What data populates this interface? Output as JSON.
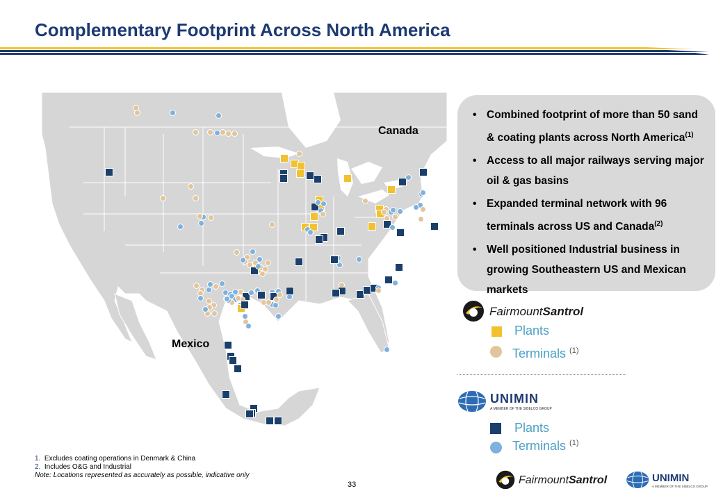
{
  "title": "Complementary Footprint Across North America",
  "map": {
    "label_canada": "Canada",
    "label_mexico": "Mexico"
  },
  "bullets": [
    {
      "text": "Combined footprint of more than 50 sand & coating plants across North America",
      "ref": "(1)"
    },
    {
      "text": "Access to all major railways serving major oil & gas basins",
      "ref": ""
    },
    {
      "text": "Expanded terminal network with 96 terminals across US and Canada",
      "ref": "(2)"
    },
    {
      "text": "Well positioned Industrial business in growing Southeastern US and Mexican markets",
      "ref": ""
    }
  ],
  "legend": {
    "fairmount": {
      "logo_text_1": "Fairmount",
      "logo_text_2": "Santrol",
      "plants": "Plants",
      "terminals": "Terminals",
      "terminals_ref": "(1)"
    },
    "unimin": {
      "logo_text": "UNIMIN",
      "logo_sub": "A MEMBER OF THE SIBELCO GROUP",
      "plants": "Plants",
      "terminals": "Terminals",
      "terminals_ref": "(1)"
    }
  },
  "footnotes": {
    "n1": "Excludes coating operations in Denmark & China",
    "n2": "Includes O&G and Industrial",
    "note": "Note: Locations represented as accurately as possible, indicative only"
  },
  "footer_logos": {
    "fairmount_1": "Fairmount",
    "fairmount_2": "Santrol",
    "unimin": "UNIMIN",
    "unimin_sub": "A MEMBER OF THE SIBELCO GROUP"
  },
  "page_number": "33",
  "colors": {
    "title": "#1d3a73",
    "gold": "#f2c12e",
    "navy": "#1b3f6b",
    "tan": "#e2c59b",
    "light_blue": "#7fb1dd",
    "map_fill": "#d6d6d6",
    "water": "#ffffff"
  }
}
